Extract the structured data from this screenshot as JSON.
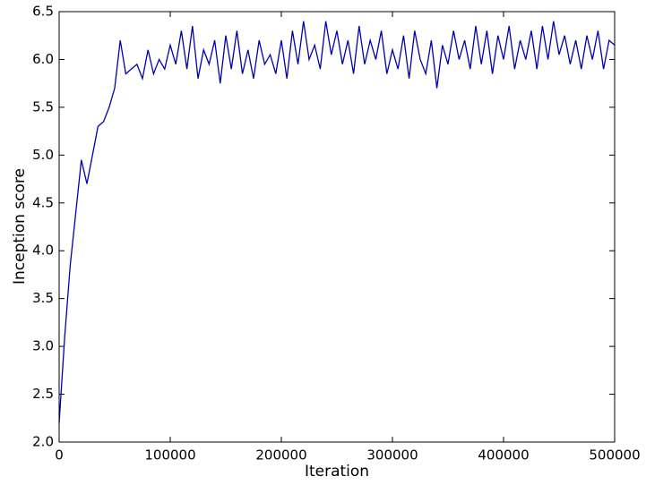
{
  "chart_data": {
    "type": "line",
    "xlabel": "Iteration",
    "ylabel": "Inception score",
    "x": [
      0,
      5000,
      10000,
      15000,
      20000,
      25000,
      30000,
      35000,
      40000,
      45000,
      50000,
      55000,
      60000,
      65000,
      70000,
      75000,
      80000,
      85000,
      90000,
      95000,
      100000,
      105000,
      110000,
      115000,
      120000,
      125000,
      130000,
      135000,
      140000,
      145000,
      150000,
      155000,
      160000,
      165000,
      170000,
      175000,
      180000,
      185000,
      190000,
      195000,
      200000,
      205000,
      210000,
      215000,
      220000,
      225000,
      230000,
      235000,
      240000,
      245000,
      250000,
      255000,
      260000,
      265000,
      270000,
      275000,
      280000,
      285000,
      290000,
      295000,
      300000,
      305000,
      310000,
      315000,
      320000,
      325000,
      330000,
      335000,
      340000,
      345000,
      350000,
      355000,
      360000,
      365000,
      370000,
      375000,
      380000,
      385000,
      390000,
      395000,
      400000,
      405000,
      410000,
      415000,
      420000,
      425000,
      430000,
      435000,
      440000,
      445000,
      450000,
      455000,
      460000,
      465000,
      470000,
      475000,
      480000,
      485000,
      490000,
      495000,
      500000
    ],
    "series": [
      {
        "color": "#0000b0",
        "values": [
          2.2,
          3.1,
          3.85,
          4.4,
          4.95,
          4.7,
          5.0,
          5.3,
          5.35,
          5.5,
          5.7,
          6.2,
          5.85,
          5.9,
          5.95,
          5.8,
          6.1,
          5.85,
          6.0,
          5.9,
          6.15,
          5.95,
          6.3,
          5.9,
          6.35,
          5.8,
          6.1,
          5.95,
          6.2,
          5.75,
          6.25,
          5.9,
          6.3,
          5.85,
          6.1,
          5.8,
          6.2,
          5.95,
          6.05,
          5.85,
          6.2,
          5.8,
          6.3,
          5.95,
          6.4,
          6.0,
          6.15,
          5.9,
          6.4,
          6.05,
          6.3,
          5.95,
          6.2,
          5.85,
          6.35,
          5.95,
          6.2,
          6.0,
          6.3,
          5.85,
          6.1,
          5.9,
          6.25,
          5.8,
          6.3,
          6.0,
          5.85,
          6.2,
          5.7,
          6.15,
          5.95,
          6.3,
          6.0,
          6.2,
          5.9,
          6.35,
          5.95,
          6.3,
          5.85,
          6.25,
          6.0,
          6.35,
          5.9,
          6.2,
          6.0,
          6.3,
          5.9,
          6.35,
          6.0,
          6.4,
          6.05,
          6.25,
          5.95,
          6.2,
          5.9,
          6.25,
          6.0,
          6.3,
          5.9,
          6.2,
          6.15
        ]
      }
    ],
    "xlim": [
      0,
      500000
    ],
    "xticks": [
      0,
      100000,
      200000,
      300000,
      400000,
      500000
    ],
    "ylim": [
      2,
      6.5
    ],
    "yticks": [
      {
        "value": 2,
        "label": "2.0"
      },
      2.5,
      {
        "value": 3,
        "label": "3.0"
      },
      3.5,
      {
        "value": 4,
        "label": "4.0"
      },
      4.5,
      {
        "value": 5,
        "label": "5.0"
      },
      5.5,
      {
        "value": 6,
        "label": "6.0"
      },
      6.5
    ]
  }
}
